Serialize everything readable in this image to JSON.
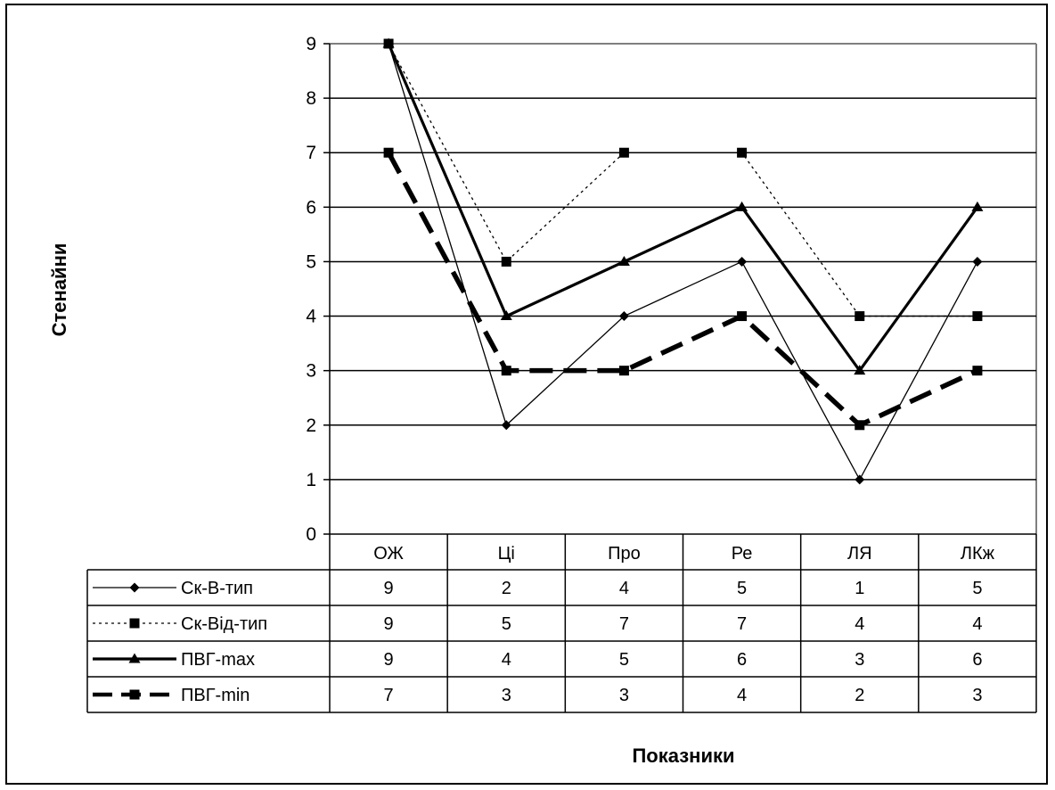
{
  "chart_data": {
    "type": "line",
    "xlabel": "Показники",
    "ylabel": "Стенайни",
    "ylim": [
      0,
      9
    ],
    "yticks": [
      "0",
      "1",
      "2",
      "3",
      "4",
      "5",
      "6",
      "7",
      "8",
      "9"
    ],
    "categories": [
      "ОЖ",
      "Ці",
      "Про",
      "Ре",
      "ЛЯ",
      "ЛКж"
    ],
    "grid": true,
    "legend": "data-table-left",
    "series": [
      {
        "name": "Ск-В-тип",
        "values": [
          9,
          2,
          4,
          5,
          1,
          5
        ],
        "line": "thin-solid",
        "marker": "diamond"
      },
      {
        "name": "Ск-Від-тип",
        "values": [
          9,
          5,
          7,
          7,
          4,
          4
        ],
        "line": "dotted",
        "marker": "square"
      },
      {
        "name": "ПВГ-max",
        "values": [
          9,
          4,
          5,
          6,
          3,
          6
        ],
        "line": "thick-solid",
        "marker": "triangle"
      },
      {
        "name": "ПВГ-min",
        "values": [
          7,
          3,
          3,
          4,
          2,
          3
        ],
        "line": "thick-dash",
        "marker": "square"
      }
    ],
    "colors": {
      "line": "#000000",
      "grid": "#000000",
      "background": "#ffffff"
    }
  }
}
